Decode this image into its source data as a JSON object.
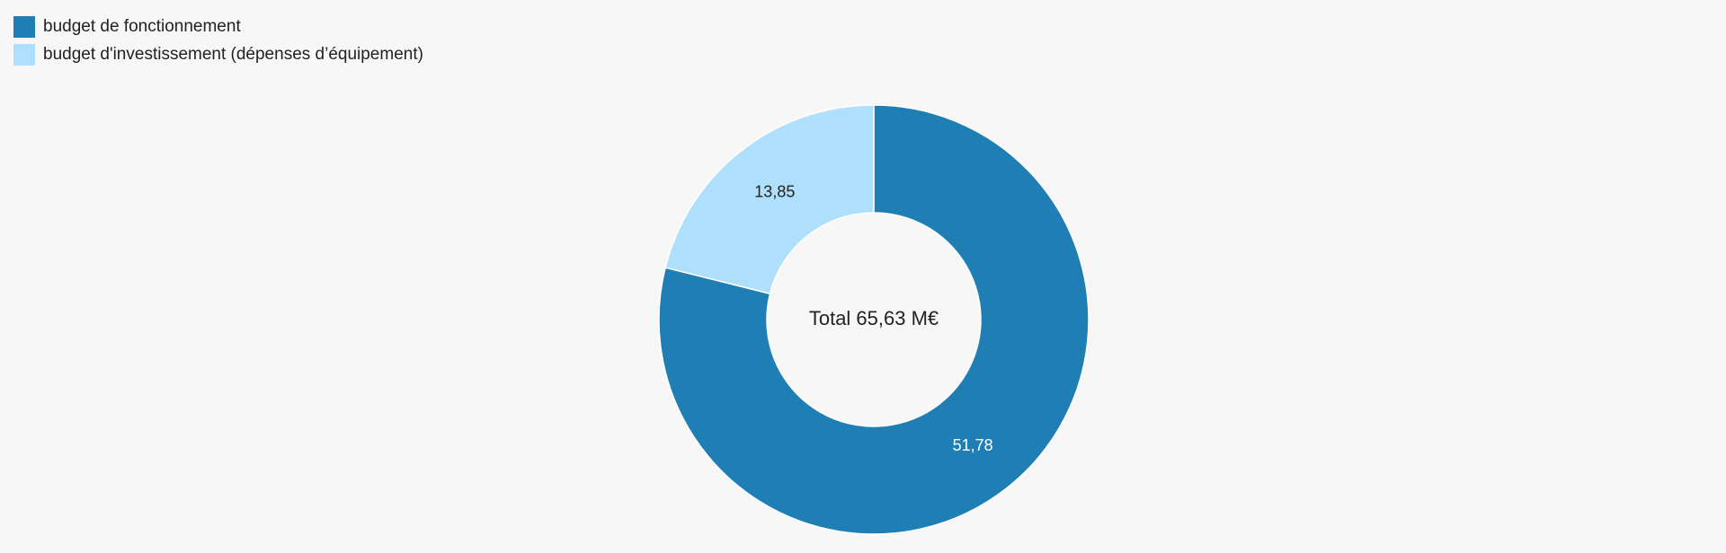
{
  "chart_data": {
    "type": "donut",
    "categories": [
      "budget de fonctionnement",
      "budget d'investissement (dépenses d’équipement)"
    ],
    "values": [
      51.78,
      13.85
    ],
    "value_labels": [
      "51,78",
      "13,85"
    ],
    "colors": [
      "#1f7eb4",
      "#aedffc"
    ],
    "label_colors": [
      "#ffffff",
      "#222222"
    ],
    "center_label": "Total 65,63 M€",
    "legend": "top-left"
  }
}
